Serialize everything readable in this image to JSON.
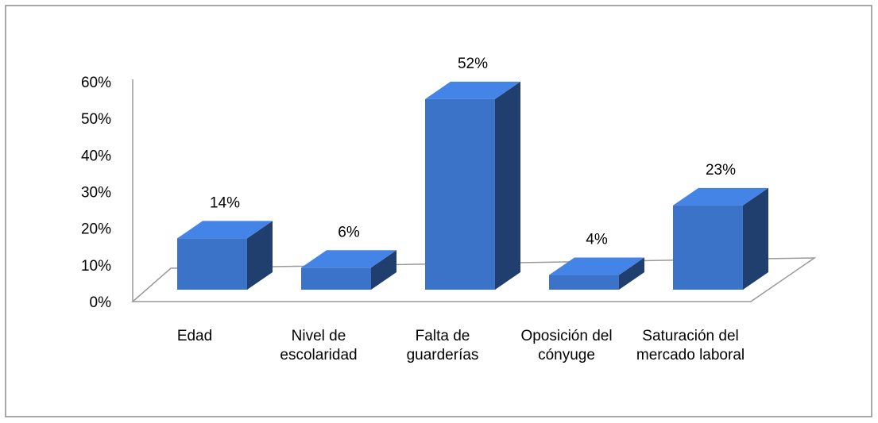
{
  "chart_data": {
    "type": "bar3d",
    "categories": [
      "Edad",
      "Nivel de escolaridad",
      "Falta de guarderías",
      "Oposición del cónyuge",
      "Saturación del mercado laboral"
    ],
    "values": [
      14,
      6,
      52,
      4,
      23
    ],
    "value_labels": [
      "14%",
      "6%",
      "52%",
      "4%",
      "23%"
    ],
    "color": "#3a73c8",
    "ylim": [
      0,
      60
    ],
    "yticks": [
      {
        "value": 0,
        "label": "0%"
      },
      {
        "value": 10,
        "label": "10%"
      },
      {
        "value": 20,
        "label": "20%"
      },
      {
        "value": 30,
        "label": "30%"
      },
      {
        "value": 40,
        "label": "40%"
      },
      {
        "value": 50,
        "label": "50%"
      },
      {
        "value": 60,
        "label": "60%"
      }
    ]
  }
}
